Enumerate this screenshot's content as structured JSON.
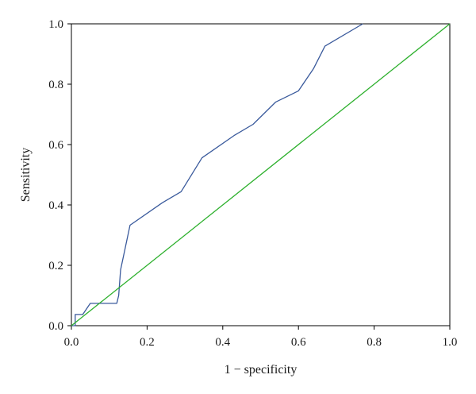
{
  "chart_data": {
    "type": "line",
    "title": "",
    "xlabel": "1 − specificity",
    "ylabel": "Sensitivity",
    "xlim": [
      0.0,
      1.0
    ],
    "ylim": [
      0.0,
      1.0
    ],
    "x_ticks": [
      "0.0",
      "0.2",
      "0.4",
      "0.6",
      "0.8",
      "1.0"
    ],
    "y_ticks": [
      "0.0",
      "0.2",
      "0.4",
      "0.6",
      "0.8",
      "1.0"
    ],
    "grid": false,
    "legend": "none",
    "series": [
      {
        "color": "#3a5a9c",
        "x": [
          0.0,
          0.01,
          0.01,
          0.03,
          0.05,
          0.08,
          0.12,
          0.125,
          0.13,
          0.155,
          0.24,
          0.29,
          0.345,
          0.43,
          0.48,
          0.54,
          0.6,
          0.64,
          0.67,
          0.77
        ],
        "y": [
          0.0,
          0.0,
          0.037,
          0.037,
          0.074,
          0.074,
          0.074,
          0.1,
          0.185,
          0.333,
          0.407,
          0.444,
          0.556,
          0.63,
          0.667,
          0.741,
          0.778,
          0.852,
          0.926,
          1.0
        ]
      },
      {
        "color": "#2db02d",
        "x": [
          0.0,
          1.0
        ],
        "y": [
          0.0,
          1.0
        ]
      }
    ]
  }
}
